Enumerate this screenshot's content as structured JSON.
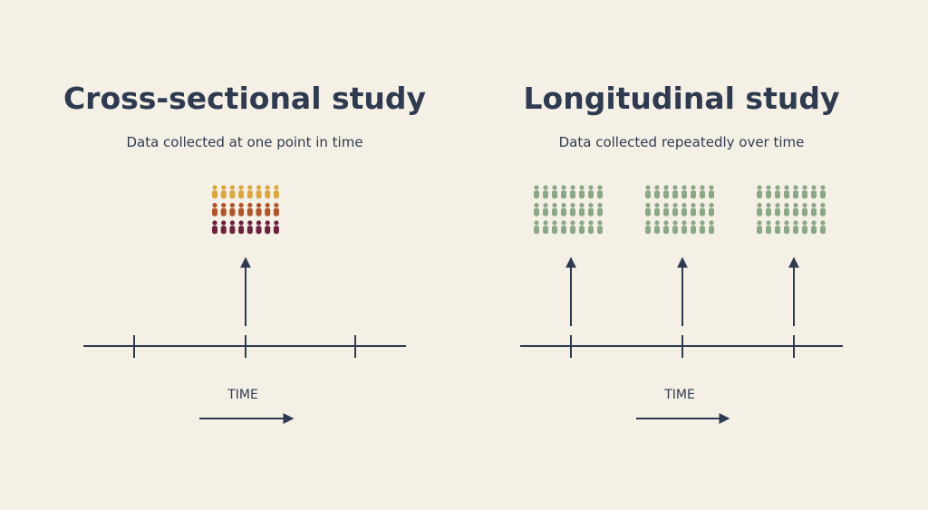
{
  "left": {
    "title": "Cross-sectional study",
    "subtitle": "Data collected at one point in time",
    "axis_label": "TIME"
  },
  "right": {
    "title": "Longitudinal study",
    "subtitle": "Data collected repeatedly over time",
    "axis_label": "TIME"
  }
}
